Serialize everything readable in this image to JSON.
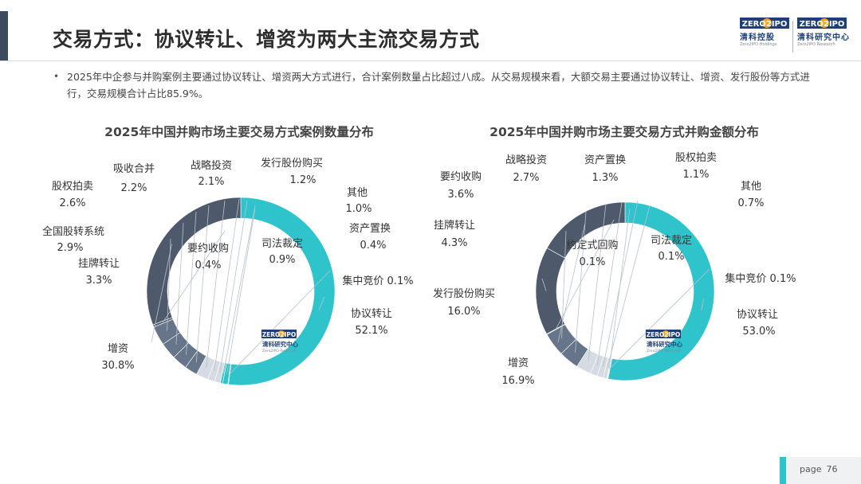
{
  "header": {
    "title": "交易方式：协议转让、增资为两大主流交易方式",
    "logo_holdings_mark": "ZERO2IPO",
    "logo_holdings_cn": "清科控股",
    "logo_holdings_en": "Zero2IPO Holdings",
    "logo_research_mark": "ZERO2IPO",
    "logo_research_cn": "清科研究中心",
    "logo_research_en": "Zero2IPO Research"
  },
  "summary": {
    "bullet_symbol": "•",
    "text": "2025年中企参与并购案例主要通过协议转让、增资两大方式进行，合计案例数量占比超过八成。从交易规模来看，大额交易主要通过协议转让、增资、发行股份等方式进行，交易规模合计占比85.9%。"
  },
  "watermark": {
    "mark": "ZERO2IPO",
    "cn": "清科研究中心",
    "en": "Zero2IPO Research"
  },
  "colors": {
    "teal": "#2fc4cc",
    "dark": "#4e5a6b",
    "mid": "#66758a",
    "light": "#d6dbe3",
    "label": "#333333",
    "leader": "#b8c0cc"
  },
  "footer": {
    "page_label": "page",
    "page_number": "76"
  },
  "chart_data": [
    {
      "type": "pie",
      "variant": "donut",
      "title": "2025年中国并购市场主要交易方式案例数量分布",
      "unit": "%",
      "slices": [
        {
          "label": "协议转让",
          "value": 52.1,
          "value_text": "52.1%"
        },
        {
          "label": "集中竞价",
          "value": 0.1,
          "value_text": "0.1%"
        },
        {
          "label": "司法裁定",
          "value": 0.9,
          "value_text": "0.9%"
        },
        {
          "label": "资产置换",
          "value": 0.4,
          "value_text": "0.4%"
        },
        {
          "label": "其他",
          "value": 1.0,
          "value_text": "1.0%"
        },
        {
          "label": "发行股份购买",
          "value": 1.2,
          "value_text": "1.2%"
        },
        {
          "label": "战略投资",
          "value": 2.1,
          "value_text": "2.1%"
        },
        {
          "label": "吸收合并",
          "value": 2.2,
          "value_text": "2.2%"
        },
        {
          "label": "股权拍卖",
          "value": 2.6,
          "value_text": "2.6%"
        },
        {
          "label": "全国股转系统",
          "value": 2.9,
          "value_text": "2.9%"
        },
        {
          "label": "挂牌转让",
          "value": 3.3,
          "value_text": "3.3%"
        },
        {
          "label": "要约收购",
          "value": 0.4,
          "value_text": "0.4%"
        },
        {
          "label": "增资",
          "value": 30.8,
          "value_text": "30.8%"
        }
      ]
    },
    {
      "type": "pie",
      "variant": "donut",
      "title": "2025年中国并购市场主要交易方式并购金额分布",
      "unit": "%",
      "slices": [
        {
          "label": "协议转让",
          "value": 53.0,
          "value_text": "53.0%"
        },
        {
          "label": "集中竞价",
          "value": 0.1,
          "value_text": "0.1%"
        },
        {
          "label": "司法裁定",
          "value": 0.1,
          "value_text": "0.1%"
        },
        {
          "label": "其他",
          "value": 0.7,
          "value_text": "0.7%"
        },
        {
          "label": "股权拍卖",
          "value": 1.1,
          "value_text": "1.1%"
        },
        {
          "label": "资产置换",
          "value": 1.3,
          "value_text": "1.3%"
        },
        {
          "label": "战略投资",
          "value": 2.7,
          "value_text": "2.7%"
        },
        {
          "label": "要约收购",
          "value": 3.6,
          "value_text": "3.6%"
        },
        {
          "label": "挂牌转让",
          "value": 4.3,
          "value_text": "4.3%"
        },
        {
          "label": "约定式回购",
          "value": 0.1,
          "value_text": "0.1%"
        },
        {
          "label": "发行股份购买",
          "value": 16.0,
          "value_text": "16.0%"
        },
        {
          "label": "增资",
          "value": 16.9,
          "value_text": "16.9%"
        }
      ]
    }
  ]
}
